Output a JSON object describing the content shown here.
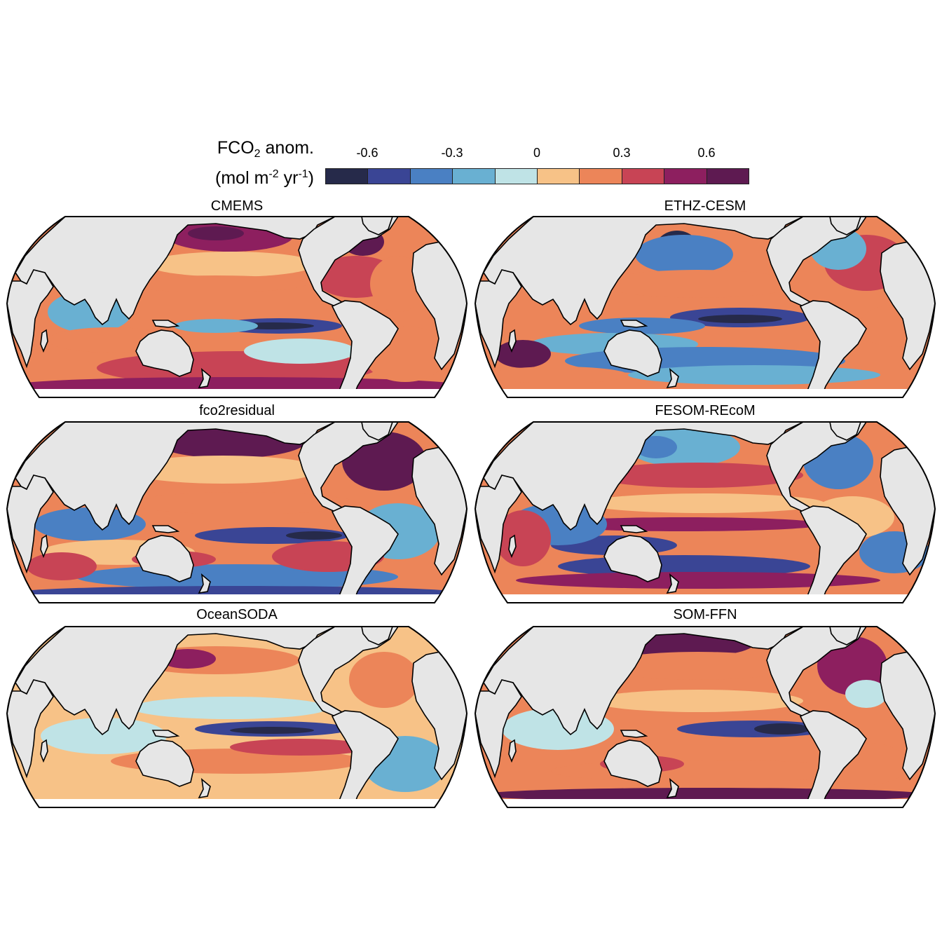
{
  "legend": {
    "title_main": "FCO",
    "title_sub": "2",
    "title_rest": " anom.",
    "units_open": "(mol m",
    "units_exp1": "-2",
    "units_mid": " yr",
    "units_exp2": "-1",
    "units_close": ")",
    "ticks": [
      "-0.6",
      "-0.3",
      "0",
      "0.3",
      "0.6"
    ],
    "colors": [
      "#262a4a",
      "#3a4595",
      "#4a80c3",
      "#69b0d2",
      "#bfe3e6",
      "#f7c287",
      "#ec8559",
      "#c84455",
      "#8d1f5f",
      "#5e1a51"
    ]
  },
  "panels": [
    {
      "title": "CMEMS"
    },
    {
      "title": "ETHZ-CESM"
    },
    {
      "title": "fco2residual"
    },
    {
      "title": "FESOM-REcoM"
    },
    {
      "title": "OceanSODA"
    },
    {
      "title": "SOM-FFN"
    }
  ],
  "map_colors": {
    "land": "#e6e6e6",
    "coast": "#000000"
  }
}
